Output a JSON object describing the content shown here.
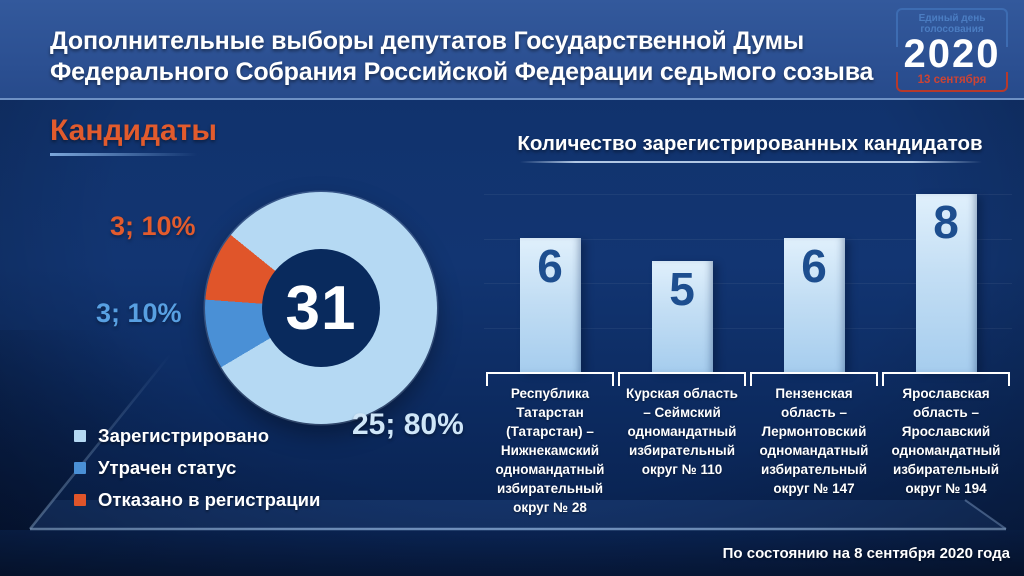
{
  "slide": {
    "title_line1": "Дополнительные выборы депутатов Государственной Думы",
    "title_line2": "Федерального Собрания Российской Федерации седьмого созыва",
    "footer_note": "По состоянию на 8 сентября 2020 года"
  },
  "logo": {
    "top_label": "Единый день голосования",
    "year": "2020",
    "date": "13 сентября"
  },
  "pie_section": {
    "heading": "Кандидаты",
    "center_value": "31",
    "callout_registered": "25; 80%",
    "callout_lost": "3; 10%",
    "callout_denied": "3; 10%",
    "start_angle_deg": 309
  },
  "bar_section": {
    "heading": "Количество зарегистрированных кандидатов"
  },
  "chart_data": [
    {
      "type": "pie",
      "title": "Кандидаты",
      "center_total": 31,
      "slices": [
        {
          "label": "Зарегистрировано",
          "value": 25,
          "pct": 80,
          "color": "#b5d9f3"
        },
        {
          "label": "Утрачен статус",
          "value": 3,
          "pct": 10,
          "color": "#4a90d6"
        },
        {
          "label": "Отказано в регистрации",
          "value": 3,
          "pct": 10,
          "color": "#e0552a"
        }
      ],
      "legend_position": "bottom-left",
      "donut": true
    },
    {
      "type": "bar",
      "title": "Количество зарегистрированных кандидатов",
      "categories": [
        "Республика Татарстан (Татарстан) – Нижнекамский одномандатный избирательный округ № 28",
        "Курская область – Сеймский одномандатный избирательный округ № 110",
        "Пензенская область – Лермонтовский одномандатный избирательный округ № 147",
        "Ярославская область – Ярославский одномандатный избирательный округ № 194"
      ],
      "values": [
        6,
        5,
        6,
        8
      ],
      "ylim": [
        0,
        9
      ],
      "grid": true,
      "bar_color_top": "#e0f0fc",
      "bar_color_bottom": "#a6cdee",
      "value_label_color": "#1d4e8f"
    }
  ]
}
